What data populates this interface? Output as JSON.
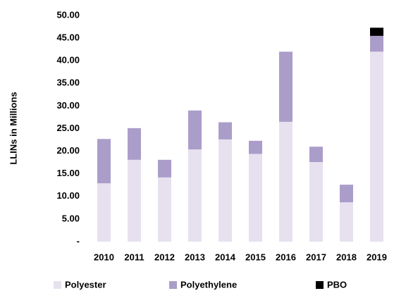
{
  "chart_data": {
    "type": "stacked_bar",
    "y_label": "LLINs in Millions",
    "categories": [
      "2010",
      "2011",
      "2012",
      "2013",
      "2014",
      "2015",
      "2016",
      "2017",
      "2018",
      "2019"
    ],
    "series": [
      {
        "name": "Polyester",
        "color": "#e7e1ef",
        "values": [
          12.9,
          18.1,
          14.2,
          20.4,
          22.6,
          19.4,
          26.5,
          17.6,
          8.7,
          42.0
        ]
      },
      {
        "name": "Polyethylene",
        "color": "#ab9dca",
        "values": [
          9.8,
          7.0,
          3.9,
          8.6,
          3.8,
          2.9,
          15.5,
          3.4,
          3.9,
          3.5
        ]
      },
      {
        "name": "PBO",
        "color": "#000000",
        "values": [
          0,
          0,
          0,
          0,
          0,
          0,
          0,
          0,
          0,
          1.8
        ]
      }
    ],
    "ylim": [
      0,
      50
    ],
    "yticks": [
      {
        "value": 0,
        "label": "-"
      },
      {
        "value": 5,
        "label": "5.00"
      },
      {
        "value": 10,
        "label": "10.00"
      },
      {
        "value": 15,
        "label": "15.00"
      },
      {
        "value": 20,
        "label": "20.00"
      },
      {
        "value": 25,
        "label": "25.00"
      },
      {
        "value": 30,
        "label": "30.00"
      },
      {
        "value": 35,
        "label": "35.00"
      },
      {
        "value": 40,
        "label": "40.00"
      },
      {
        "value": 45,
        "label": "45.00"
      },
      {
        "value": 50,
        "label": "50.00"
      }
    ],
    "legend": "bottom"
  }
}
